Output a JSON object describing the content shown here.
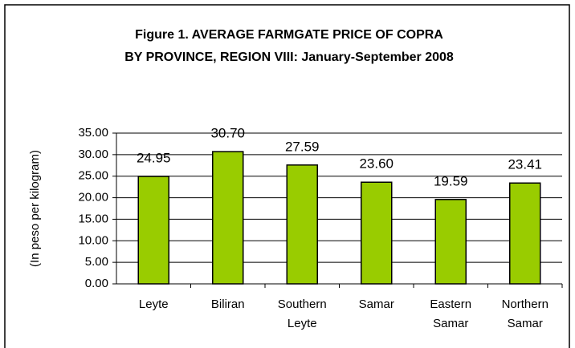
{
  "chart_data": {
    "type": "bar",
    "title": [
      "Figure 1.  AVERAGE FARMGATE PRICE OF COPRA",
      "BY PROVINCE, REGION VIII: January-September 2008"
    ],
    "y_label": "(In peso per kilogram)",
    "categories": [
      "Leyte",
      "Biliran",
      "Southern Leyte",
      "Samar",
      "Eastern Samar",
      "Northern Samar"
    ],
    "values": [
      24.95,
      30.7,
      27.59,
      23.6,
      19.59,
      23.41
    ],
    "value_labels": [
      "24.95",
      "30.70",
      "27.59",
      "23.60",
      "19.59",
      "23.41"
    ],
    "color": "#99cc00",
    "ylim": [
      0,
      35
    ],
    "yticks": [
      {
        "value": 0,
        "label": "0.00"
      },
      {
        "value": 5,
        "label": "5.00"
      },
      {
        "value": 10,
        "label": "10.00"
      },
      {
        "value": 15,
        "label": "15.00"
      },
      {
        "value": 20,
        "label": "20.00"
      },
      {
        "value": 25,
        "label": "25.00"
      },
      {
        "value": 30,
        "label": "30.00"
      },
      {
        "value": 35,
        "label": "35.00"
      }
    ],
    "grid": true
  }
}
